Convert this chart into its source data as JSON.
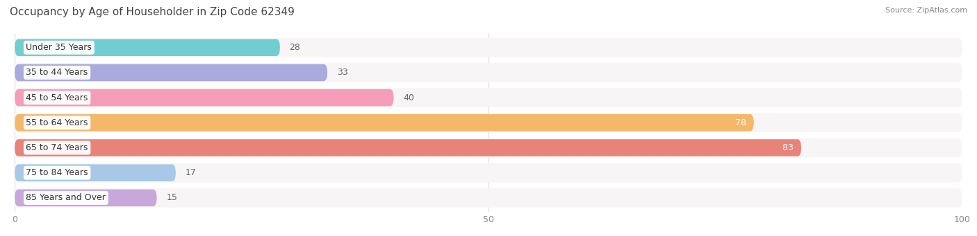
{
  "title": "Occupancy by Age of Householder in Zip Code 62349",
  "source": "Source: ZipAtlas.com",
  "categories": [
    "Under 35 Years",
    "35 to 44 Years",
    "45 to 54 Years",
    "55 to 64 Years",
    "65 to 74 Years",
    "75 to 84 Years",
    "85 Years and Over"
  ],
  "values": [
    28,
    33,
    40,
    78,
    83,
    17,
    15
  ],
  "bar_colors": [
    "#72cdd2",
    "#aaaade",
    "#f59db8",
    "#f5b86a",
    "#e8837a",
    "#a8c8e8",
    "#c8a8d8"
  ],
  "bar_bg_color": "#f0eeee",
  "xlim_max": 100,
  "label_color_light": "#ffffff",
  "label_color_dark": "#666666",
  "label_threshold": 50,
  "title_fontsize": 11,
  "source_fontsize": 8,
  "bar_label_fontsize": 9,
  "category_fontsize": 9,
  "tick_fontsize": 9,
  "background_color": "#ffffff",
  "grid_color": "#e0dede",
  "bar_height": 0.68,
  "row_bg_color": "#f7f5f5"
}
